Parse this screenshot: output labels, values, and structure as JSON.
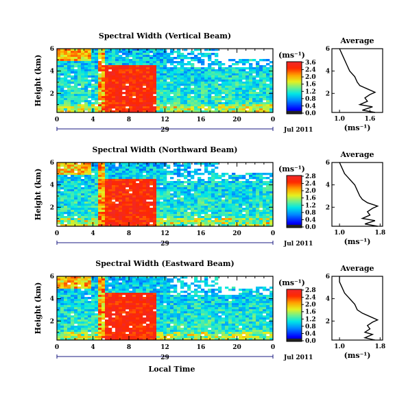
{
  "chart_data": [
    {
      "type": "heatmap",
      "title": "Spectral Width (Vertical Beam)",
      "ylabel": "Height (km)",
      "yticks": [
        "6",
        "4",
        "2"
      ],
      "xticks": [
        "0",
        "4",
        "8",
        "12",
        "16",
        "20",
        "0"
      ],
      "date_day": "29",
      "date_label": "Jul 2011",
      "xlim": [
        0,
        24
      ],
      "ylim": [
        0.3,
        6
      ],
      "colorbar": {
        "unit": "(ms⁻¹)",
        "ticks": [
          "3.6",
          "2.4",
          "2.0",
          "1.6",
          "1.2",
          "0.8",
          "0.4",
          "0.0"
        ],
        "range": [
          0.0,
          3.6
        ]
      },
      "average_profile": {
        "title": "Average",
        "xlabel": "(ms⁻¹)",
        "xticks": [
          "1.0",
          "1.6"
        ],
        "yticks": [
          "6",
          "4",
          "2"
        ],
        "height_km": [
          0.3,
          0.5,
          0.8,
          1.0,
          1.3,
          1.6,
          1.9,
          2.1,
          2.4,
          2.7,
          3.0,
          3.5,
          4.0,
          4.5,
          5.0,
          5.5,
          6.0
        ],
        "width_ms": [
          1.7,
          1.45,
          1.65,
          1.4,
          1.55,
          1.5,
          1.6,
          1.7,
          1.55,
          1.4,
          1.35,
          1.3,
          1.2,
          1.15,
          1.1,
          1.05,
          1.0
        ]
      }
    },
    {
      "type": "heatmap",
      "title": "Spectral Width (Northward Beam)",
      "ylabel": "Height (km)",
      "yticks": [
        "6",
        "4",
        "2"
      ],
      "xticks": [
        "0",
        "4",
        "8",
        "12",
        "16",
        "20",
        "0"
      ],
      "date_day": "29",
      "date_label": "Jul 2011",
      "xlim": [
        0,
        24
      ],
      "ylim": [
        0.3,
        6
      ],
      "colorbar": {
        "unit": "(ms⁻¹)",
        "ticks": [
          "2.8",
          "2.4",
          "2.0",
          "1.6",
          "1.2",
          "0.8",
          "0.4",
          "0.0"
        ],
        "range": [
          0.0,
          2.8
        ]
      },
      "average_profile": {
        "title": "Average",
        "xlabel": "(ms⁻¹)",
        "xticks": [
          "1.0",
          "1.8"
        ],
        "yticks": [
          "6",
          "4",
          "2"
        ],
        "height_km": [
          0.3,
          0.5,
          0.8,
          1.0,
          1.3,
          1.6,
          1.9,
          2.1,
          2.4,
          2.7,
          3.0,
          3.5,
          4.0,
          4.5,
          5.0,
          5.5,
          6.0
        ],
        "width_ms": [
          1.75,
          1.5,
          1.7,
          1.45,
          1.6,
          1.55,
          1.65,
          1.75,
          1.55,
          1.45,
          1.4,
          1.35,
          1.3,
          1.2,
          1.1,
          1.05,
          1.0
        ]
      }
    },
    {
      "type": "heatmap",
      "title": "Spectral Width (Eastward Beam)",
      "ylabel": "Height (km)",
      "xlabel": "Local Time",
      "yticks": [
        "6",
        "4",
        "2"
      ],
      "xticks": [
        "0",
        "4",
        "8",
        "12",
        "16",
        "20",
        "0"
      ],
      "date_day": "29",
      "date_label": "Jul 2011",
      "xlim": [
        0,
        24
      ],
      "ylim": [
        0.3,
        6
      ],
      "colorbar": {
        "unit": "(ms⁻¹)",
        "ticks": [
          "2.8",
          "2.4",
          "2.0",
          "1.6",
          "1.2",
          "0.8",
          "0.4",
          "0.0"
        ],
        "range": [
          0.0,
          2.8
        ]
      },
      "average_profile": {
        "title": "Average",
        "xlabel": "(ms⁻¹)",
        "xticks": [
          "1.0",
          "1.8"
        ],
        "yticks": [
          "6",
          "4",
          "2"
        ],
        "height_km": [
          0.3,
          0.5,
          0.8,
          1.0,
          1.3,
          1.6,
          1.9,
          2.1,
          2.4,
          2.7,
          3.0,
          3.5,
          4.0,
          4.5,
          5.0,
          5.5,
          6.0
        ],
        "width_ms": [
          1.7,
          1.5,
          1.65,
          1.5,
          1.6,
          1.55,
          1.65,
          1.75,
          1.6,
          1.45,
          1.35,
          1.3,
          1.2,
          1.1,
          1.05,
          1.0,
          1.0
        ]
      }
    }
  ]
}
